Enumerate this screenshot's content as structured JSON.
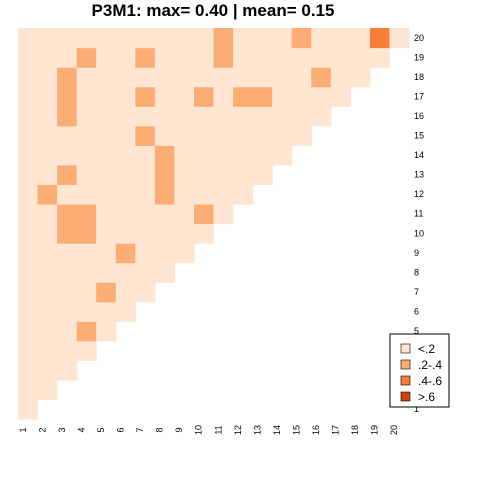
{
  "chart_data": {
    "type": "heatmap",
    "title": "P3M1: max= 0.40 | mean= 0.15",
    "x_ticks": [
      "1",
      "2",
      "3",
      "4",
      "5",
      "6",
      "7",
      "8",
      "9",
      "10",
      "11",
      "12",
      "13",
      "14",
      "15",
      "16",
      "17",
      "18",
      "19",
      "20"
    ],
    "y_ticks": [
      "1",
      "2",
      "3",
      "4",
      "5",
      "6",
      "7",
      "8",
      "9",
      "10",
      "11",
      "12",
      "13",
      "14",
      "15",
      "16",
      "17",
      "18",
      "19",
      "20"
    ],
    "x_range": [
      1,
      20
    ],
    "y_range": [
      1,
      20
    ],
    "lower_triangle_only": true,
    "default_bin": 0,
    "colors": [
      "#fee6d3",
      "#fcad73",
      "#f77f37",
      "#d1420e"
    ],
    "legend": {
      "position": "bottom-right",
      "entries": [
        {
          "label": "<.2",
          "bin": 0
        },
        {
          "label": ".2-.4",
          "bin": 1
        },
        {
          "label": ".4-.6",
          "bin": 2
        },
        {
          "label": ">.6",
          "bin": 3
        }
      ]
    },
    "highlighted_cells": [
      {
        "x": 4,
        "y": 5,
        "bin": 1
      },
      {
        "x": 5,
        "y": 7,
        "bin": 1
      },
      {
        "x": 6,
        "y": 9,
        "bin": 1
      },
      {
        "x": 3,
        "y": 10,
        "bin": 1
      },
      {
        "x": 4,
        "y": 10,
        "bin": 1
      },
      {
        "x": 3,
        "y": 11,
        "bin": 1
      },
      {
        "x": 4,
        "y": 11,
        "bin": 1
      },
      {
        "x": 10,
        "y": 11,
        "bin": 1
      },
      {
        "x": 2,
        "y": 12,
        "bin": 1
      },
      {
        "x": 8,
        "y": 12,
        "bin": 1
      },
      {
        "x": 3,
        "y": 13,
        "bin": 1
      },
      {
        "x": 8,
        "y": 13,
        "bin": 1
      },
      {
        "x": 8,
        "y": 14,
        "bin": 1
      },
      {
        "x": 7,
        "y": 15,
        "bin": 1
      },
      {
        "x": 3,
        "y": 16,
        "bin": 1
      },
      {
        "x": 3,
        "y": 17,
        "bin": 1
      },
      {
        "x": 7,
        "y": 17,
        "bin": 1
      },
      {
        "x": 10,
        "y": 17,
        "bin": 1
      },
      {
        "x": 12,
        "y": 17,
        "bin": 1
      },
      {
        "x": 13,
        "y": 17,
        "bin": 1
      },
      {
        "x": 3,
        "y": 18,
        "bin": 1
      },
      {
        "x": 16,
        "y": 18,
        "bin": 1
      },
      {
        "x": 4,
        "y": 19,
        "bin": 1
      },
      {
        "x": 7,
        "y": 19,
        "bin": 1
      },
      {
        "x": 11,
        "y": 19,
        "bin": 1
      },
      {
        "x": 11,
        "y": 20,
        "bin": 1
      },
      {
        "x": 15,
        "y": 20,
        "bin": 1
      },
      {
        "x": 19,
        "y": 20,
        "bin": 2
      }
    ]
  }
}
